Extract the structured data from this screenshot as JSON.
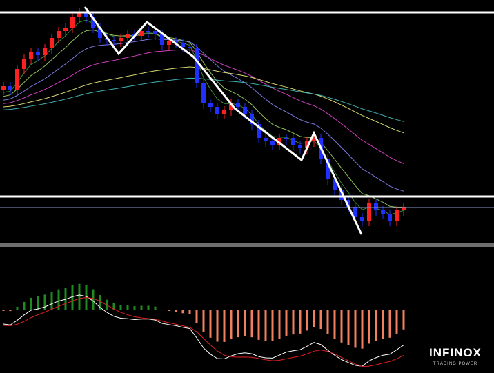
{
  "logo": {
    "name": "INFINOX",
    "tagline": "TRADING POWER"
  }
}
